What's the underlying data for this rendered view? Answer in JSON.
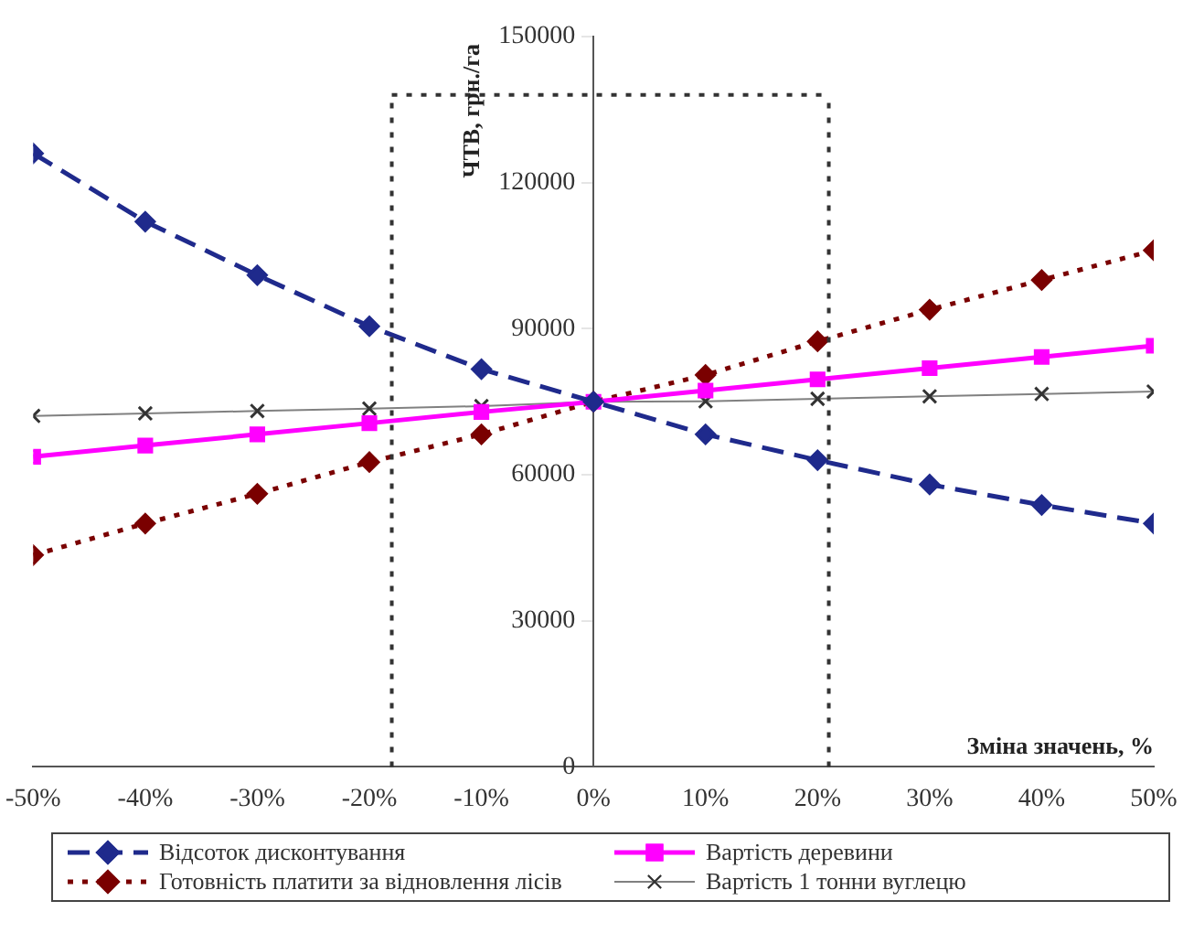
{
  "chart_data": {
    "type": "line",
    "xlabel": "Зміна значень, %",
    "ylabel": "ЧТВ, грн./га",
    "x": [
      -50,
      -40,
      -30,
      -20,
      -10,
      0,
      10,
      20,
      30,
      40,
      50
    ],
    "xlim": [
      -50,
      50
    ],
    "xticks": [
      {
        "value": -50,
        "label": "-50%"
      },
      {
        "value": -40,
        "label": "-40%"
      },
      {
        "value": -30,
        "label": "-30%"
      },
      {
        "value": -20,
        "label": "-20%"
      },
      {
        "value": -10,
        "label": "-10%"
      },
      {
        "value": 0,
        "label": "0%"
      },
      {
        "value": 10,
        "label": "10%"
      },
      {
        "value": 20,
        "label": "20%"
      },
      {
        "value": 30,
        "label": "30%"
      },
      {
        "value": 40,
        "label": "40%"
      },
      {
        "value": 50,
        "label": "50%"
      }
    ],
    "ylim": [
      0,
      150000
    ],
    "yticks": [
      0,
      30000,
      60000,
      90000,
      120000,
      150000
    ],
    "grid": false,
    "legend": "bottom",
    "ref_lines": [
      {
        "axis": "x",
        "value": -18,
        "color": "#333333",
        "line_style": "dotted"
      },
      {
        "axis": "x",
        "value": 21,
        "color": "#333333",
        "line_style": "dotted"
      },
      {
        "axis": "y",
        "value": 138000,
        "color": "#333333",
        "line_style": "dotted"
      }
    ],
    "series": [
      {
        "name": "Відсоток дисконтування",
        "color": "#1f2a8c",
        "marker": "diamond",
        "line_style": "dashed",
        "values": [
          126000,
          112000,
          101000,
          90500,
          81700,
          75000,
          68300,
          63000,
          58000,
          53800,
          50000
        ]
      },
      {
        "name": "Вартість деревини",
        "color": "#ff00ff",
        "marker": "square",
        "line_style": "solid",
        "values": [
          63700,
          66000,
          68300,
          70600,
          72900,
          75000,
          77300,
          79600,
          81900,
          84200,
          86500
        ]
      },
      {
        "name": "Готовність платити за відновлення лісів",
        "color": "#7a0000",
        "marker": "diamond",
        "line_style": "dotted",
        "values": [
          43500,
          50000,
          56100,
          62600,
          68300,
          75000,
          80500,
          87400,
          93900,
          100000,
          106100
        ]
      },
      {
        "name": "Вартість 1 тонни вуглецю",
        "color": "#808080",
        "marker": "cross",
        "line_style": "solid",
        "values": [
          72100,
          72600,
          73100,
          73600,
          74100,
          75000,
          75100,
          75600,
          76100,
          76600,
          77100
        ]
      }
    ]
  }
}
